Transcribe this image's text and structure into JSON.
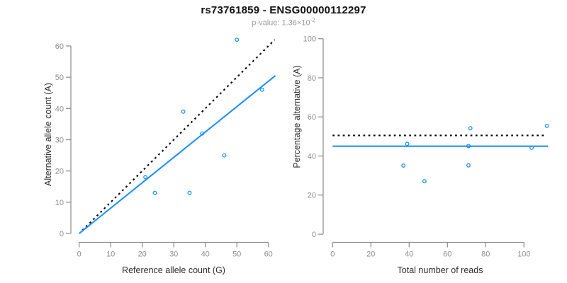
{
  "header": {
    "title": "rs73761859 - ENSG00000112297",
    "pvalue_prefix": "p-value: 1.36×10",
    "pvalue_exponent": "-2"
  },
  "colors": {
    "accent_blue": "#1e90ff",
    "axis_gray": "#8a8a8a",
    "tick_label_gray": "#8e8e8e",
    "axis_label_color": "#2e2e2e",
    "title_color": "#111111",
    "subtitle_gray": "#9c9c9c",
    "ref_line_black": "#000000"
  },
  "chart_data": [
    {
      "name": "allele-counts-scatter",
      "type": "scatter",
      "title": "",
      "xlabel": "Reference allele count (G)",
      "ylabel": "Alternative allele count (A)",
      "xlim": [
        -2.5,
        62.5
      ],
      "ylim": [
        -2.5,
        64.5
      ],
      "xticks": [
        0,
        10,
        20,
        30,
        40,
        50,
        60
      ],
      "yticks": [
        0,
        10,
        20,
        30,
        40,
        50,
        60
      ],
      "grid": false,
      "points": [
        [
          21,
          18
        ],
        [
          24,
          13
        ],
        [
          33,
          39
        ],
        [
          35,
          13
        ],
        [
          39,
          32
        ],
        [
          46,
          25
        ],
        [
          50,
          62
        ],
        [
          58,
          46
        ]
      ],
      "lines": [
        {
          "name": "identity-line",
          "style": "dotted",
          "color": "black",
          "x1": 1,
          "y1": 1,
          "x2": 62,
          "y2": 62
        },
        {
          "name": "fitted-line",
          "style": "solid",
          "color": "blue",
          "x1": 0,
          "y1": 0,
          "x2": 62.2,
          "y2": 50.5
        }
      ]
    },
    {
      "name": "percentage-vs-reads-scatter",
      "type": "scatter",
      "title": "",
      "xlabel": "Total number of reads",
      "ylabel": "Percentage alternative (A)",
      "xlim": [
        -4.7,
        117
      ],
      "ylim": [
        -4,
        104
      ],
      "xticks": [
        0,
        20,
        40,
        60,
        80,
        100
      ],
      "yticks": [
        0,
        20,
        40,
        60,
        80,
        100
      ],
      "grid": false,
      "points": [
        [
          37,
          35.1
        ],
        [
          39,
          46.2
        ],
        [
          48,
          27.1
        ],
        [
          71,
          45.1
        ],
        [
          71,
          35.2
        ],
        [
          72,
          54.2
        ],
        [
          104,
          44.2
        ],
        [
          112,
          55.4
        ]
      ],
      "lines": [
        {
          "name": "expected-50pct-line",
          "style": "dotted",
          "color": "black",
          "x1": 0,
          "y1": 50.5,
          "x2": 110.7,
          "y2": 50.5
        },
        {
          "name": "fitted-percentage-line",
          "style": "solid",
          "color": "blue",
          "x1": 0,
          "y1": 45,
          "x2": 112.6,
          "y2": 45
        }
      ]
    }
  ]
}
